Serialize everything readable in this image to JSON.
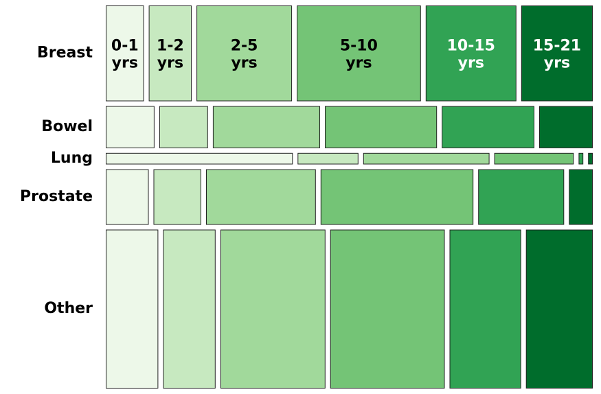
{
  "chart_data": {
    "type": "mosaic",
    "categories": [
      "0-1 yrs",
      "1-2 yrs",
      "2-5 yrs",
      "5-10 yrs",
      "10-15 yrs",
      "15-21 yrs"
    ],
    "category_lines": [
      [
        "0-1",
        "yrs"
      ],
      [
        "1-2",
        "yrs"
      ],
      [
        "2-5",
        "yrs"
      ],
      [
        "5-10",
        "yrs"
      ],
      [
        "10-15",
        "yrs"
      ],
      [
        "15-21",
        "yrs"
      ]
    ],
    "colors": [
      "#edf8e9",
      "#c7e9c0",
      "#a1d99b",
      "#74c476",
      "#31a354",
      "#006d2c"
    ],
    "label_colors": [
      "#000000",
      "#000000",
      "#000000",
      "#000000",
      "#ffffff",
      "#ffffff"
    ],
    "rows": [
      {
        "name": "Breast",
        "share": 0.25,
        "values": [
          0.08,
          0.09,
          0.2,
          0.26,
          0.19,
          0.15
        ]
      },
      {
        "name": "Bowel",
        "share": 0.11,
        "values": [
          0.1,
          0.1,
          0.22,
          0.23,
          0.19,
          0.11
        ]
      },
      {
        "name": "Lung",
        "share": 0.03,
        "values": [
          0.4,
          0.13,
          0.27,
          0.17,
          0.01,
          0.01
        ]
      },
      {
        "name": "Prostate",
        "share": 0.145,
        "values": [
          0.09,
          0.1,
          0.23,
          0.32,
          0.18,
          0.05
        ]
      },
      {
        "name": "Other",
        "share": 0.415,
        "values": [
          0.11,
          0.11,
          0.22,
          0.24,
          0.15,
          0.14
        ]
      }
    ]
  }
}
